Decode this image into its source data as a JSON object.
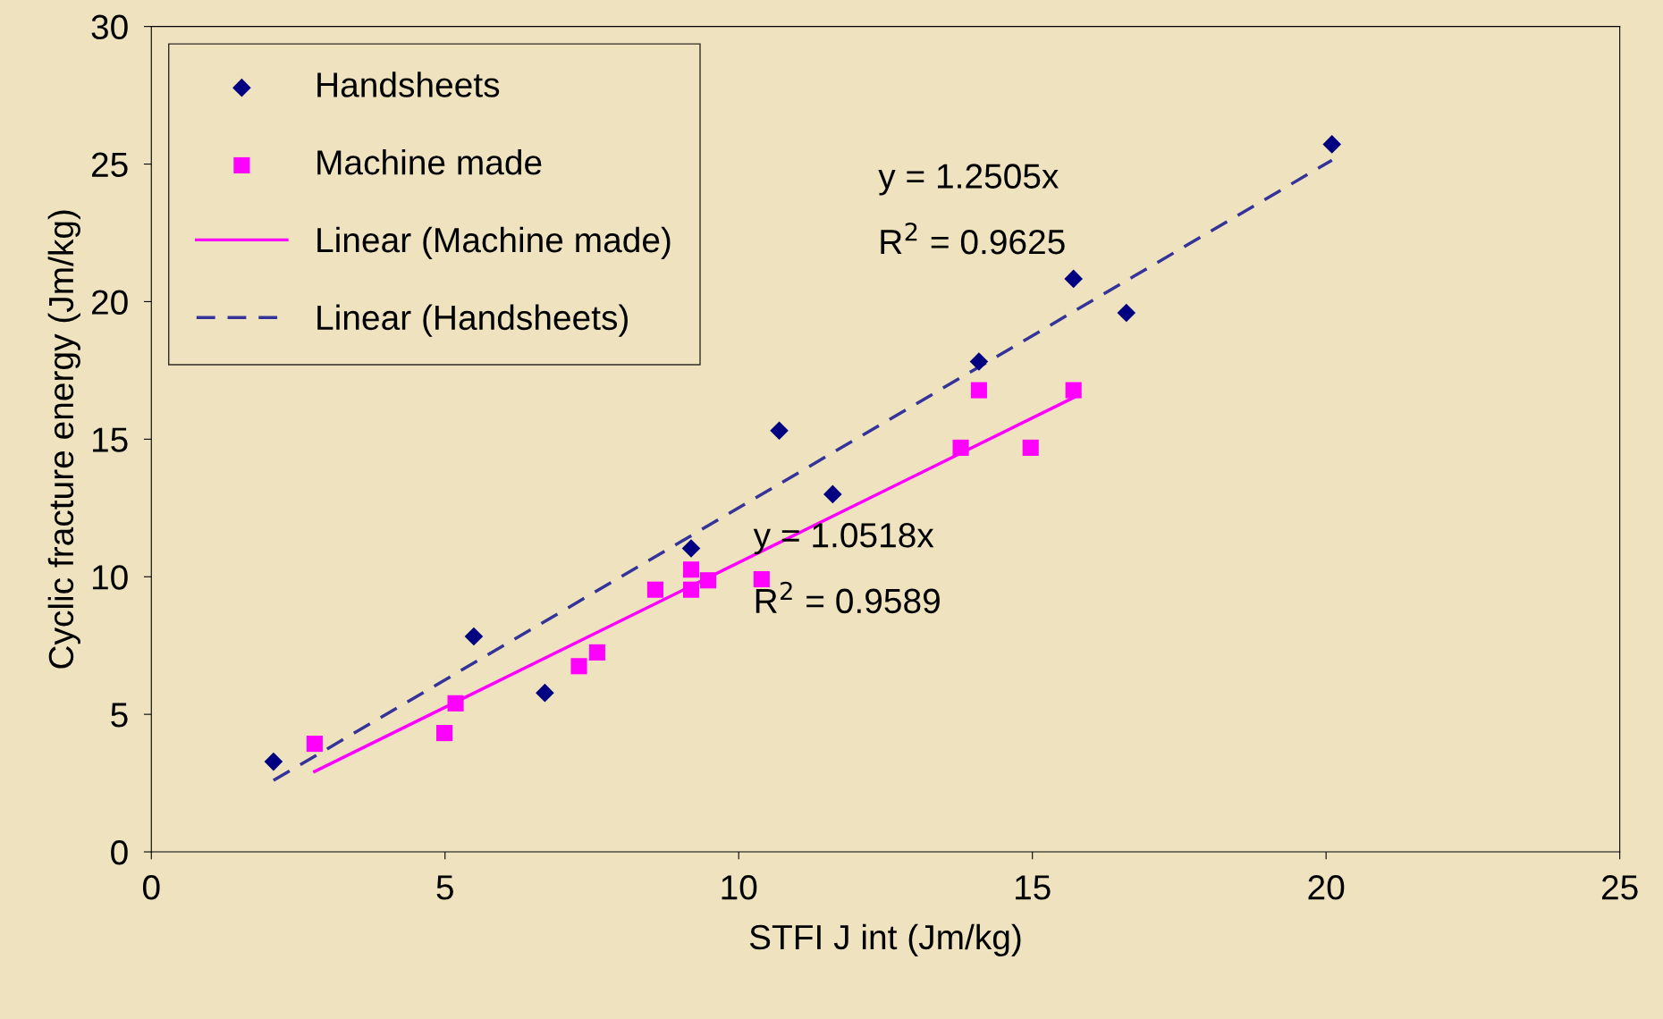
{
  "chart_data": {
    "type": "scatter",
    "xlabel": "STFI J int (Jm/kg)",
    "ylabel": "Cyclic fracture energy (Jm/kg)",
    "xlim": [
      0,
      25
    ],
    "xticks": [
      0,
      5,
      10,
      15,
      20,
      25
    ],
    "ylim": [
      0,
      30
    ],
    "yticks": [
      0,
      5,
      10,
      15,
      20,
      25,
      30
    ],
    "grid": false,
    "legend": "top left",
    "series": [
      {
        "name": "Handsheets",
        "marker": "diamond",
        "color": "#000080",
        "x": [
          2.08,
          5.49,
          6.7,
          9.19,
          10.69,
          11.6,
          14.09,
          15.7,
          16.6,
          20.1
        ],
        "values": [
          3.28,
          7.83,
          5.78,
          11.03,
          15.31,
          13.0,
          17.82,
          20.83,
          19.59,
          25.72
        ]
      },
      {
        "name": "Machine made",
        "marker": "square",
        "color": "#ff00ff",
        "x": [
          2.78,
          4.99,
          5.18,
          7.28,
          7.59,
          8.58,
          9.19,
          9.19,
          9.48,
          10.39,
          13.78,
          14.09,
          14.97,
          15.7
        ],
        "values": [
          3.93,
          4.32,
          5.4,
          6.75,
          7.25,
          9.53,
          10.26,
          9.53,
          9.87,
          9.91,
          14.69,
          16.78,
          14.69,
          16.78
        ]
      },
      {
        "name": "Linear (Machine made)",
        "type": "line",
        "line_style": "solid",
        "color": "#ff00ff",
        "x": [
          2.78,
          15.7
        ],
        "values": [
          2.92,
          16.51
        ]
      },
      {
        "name": "Linear (Handsheets)",
        "type": "line",
        "line_style": "dashed",
        "color": "#333399",
        "x": [
          2.08,
          20.1
        ],
        "values": [
          2.6,
          25.14
        ]
      }
    ],
    "annotations": [
      "y = 1.2505x",
      "R$^{2}$ = 0.9625",
      "y = 1.0518x",
      "R$^{2}$ = 0.9589"
    ]
  }
}
